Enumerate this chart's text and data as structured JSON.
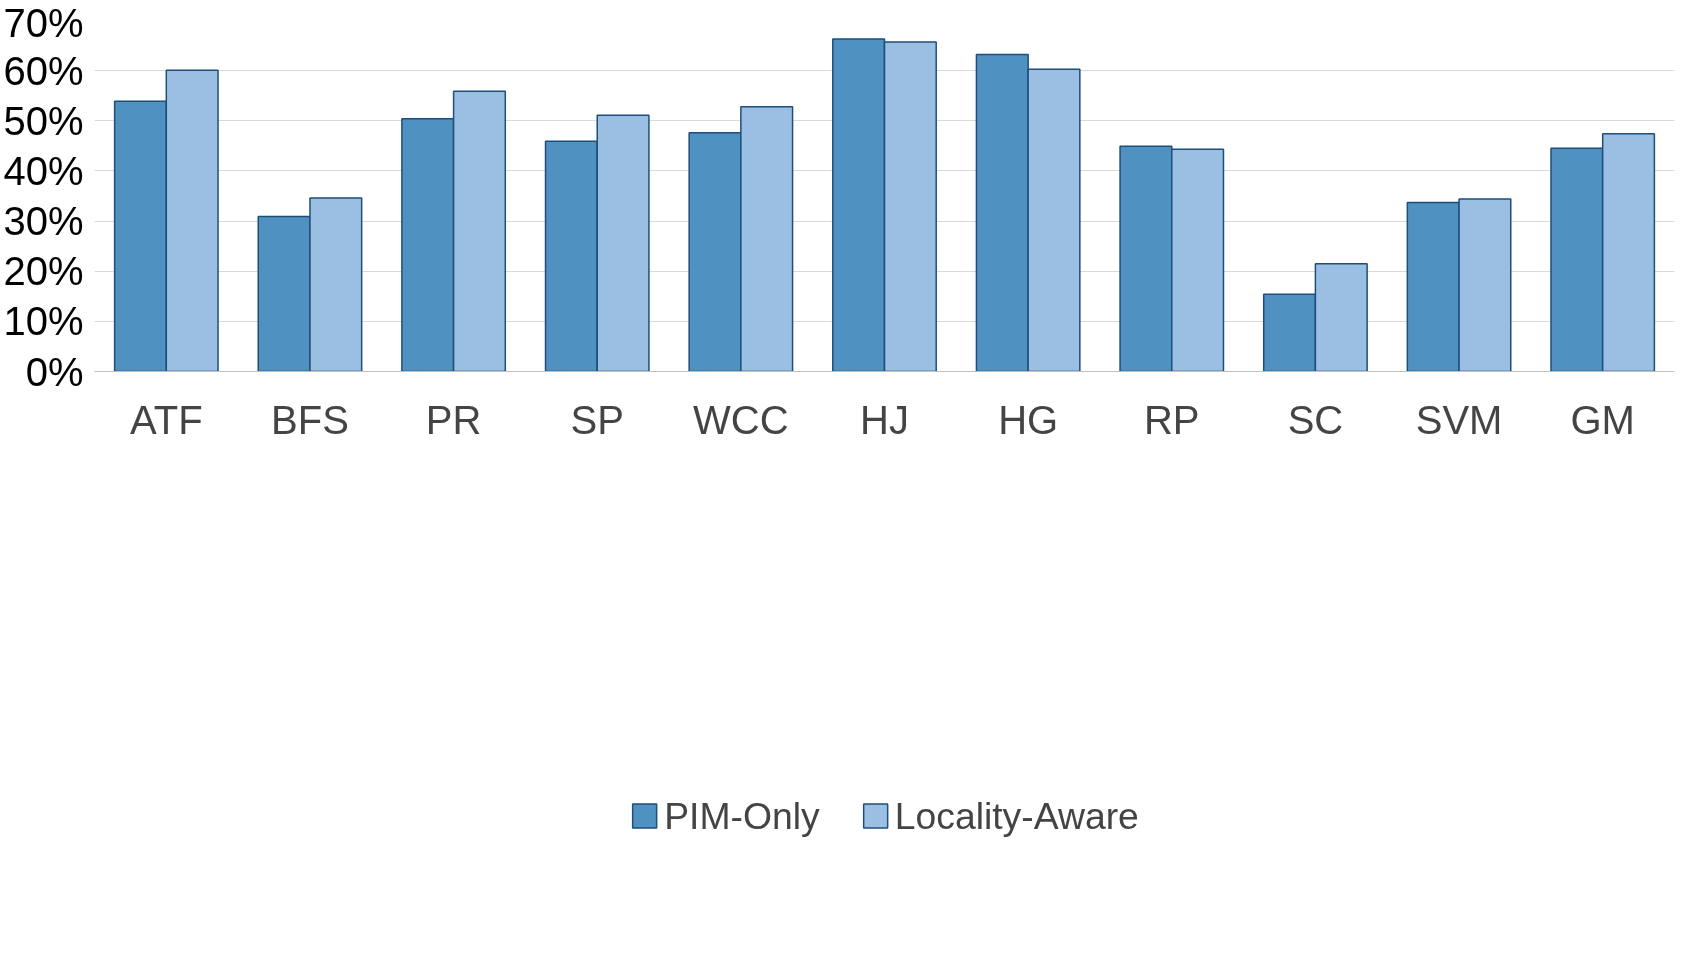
{
  "chart_data": {
    "type": "bar",
    "categories": [
      "ATF",
      "BFS",
      "PR",
      "SP",
      "WCC",
      "HJ",
      "HG",
      "RP",
      "SC",
      "SVM",
      "GM"
    ],
    "series": [
      {
        "name": "PIM-Only",
        "color": "#4f91c0",
        "values": [
          53.9,
          30.9,
          50.4,
          45.9,
          47.6,
          66.3,
          63.2,
          44.9,
          15.4,
          33.7,
          44.5
        ]
      },
      {
        "name": "Locality-Aware",
        "color": "#9bbfe3",
        "values": [
          60.1,
          34.6,
          55.9,
          51.1,
          52.8,
          65.7,
          60.3,
          44.3,
          21.5,
          34.4,
          47.4
        ]
      }
    ],
    "ylim": [
      0,
      70
    ],
    "yticks": [
      {
        "value": 0,
        "label": "0%"
      },
      {
        "value": 10,
        "label": "10%"
      },
      {
        "value": 20,
        "label": "20%"
      },
      {
        "value": 30,
        "label": "30%"
      },
      {
        "value": 40,
        "label": "40%"
      },
      {
        "value": 50,
        "label": "50%"
      },
      {
        "value": 60,
        "label": "60%"
      },
      {
        "value": 70,
        "label": "70%"
      }
    ],
    "grid": "y",
    "legend": "bottom"
  }
}
